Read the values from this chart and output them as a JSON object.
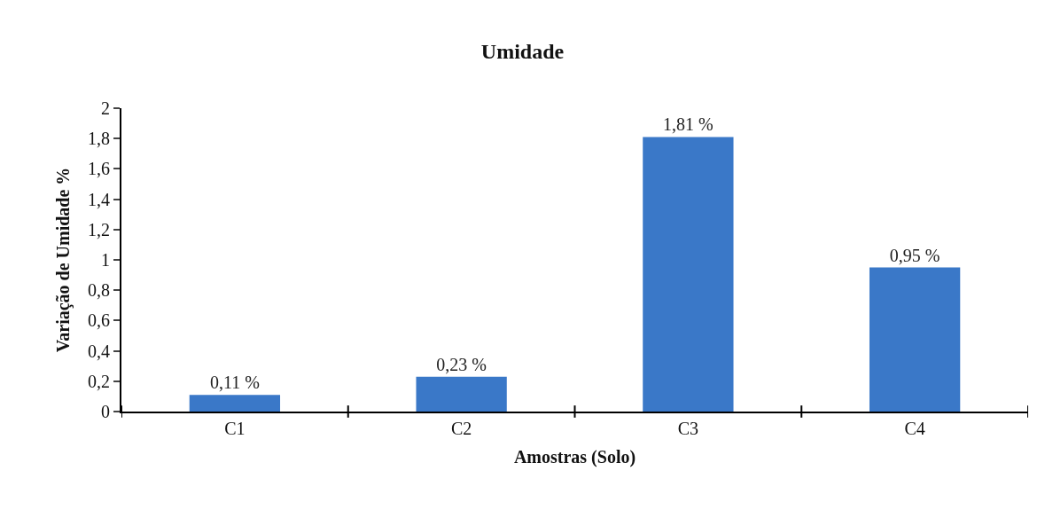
{
  "chart_data": {
    "type": "bar",
    "title": "Umidade",
    "xlabel": "Amostras (Solo)",
    "ylabel": "Variação de Umidade %",
    "categories": [
      "C1",
      "C2",
      "C3",
      "C4"
    ],
    "values": [
      0.11,
      0.23,
      1.81,
      0.95
    ],
    "value_labels": [
      "0,11 %",
      "0,23 %",
      "1,81 %",
      "0,95 %"
    ],
    "color": "#3a78c8",
    "ylim": [
      0,
      2
    ],
    "yticks": [
      0,
      {
        "value": 0.2,
        "label": "0,2"
      },
      {
        "value": 0.4,
        "label": "0,4"
      },
      {
        "value": 0.6,
        "label": "0,6"
      },
      {
        "value": 0.8,
        "label": "0,8"
      },
      1,
      {
        "value": 1.2,
        "label": "1,2"
      },
      {
        "value": 1.4,
        "label": "1,4"
      },
      {
        "value": 1.6,
        "label": "1,6"
      },
      {
        "value": 1.8,
        "label": "1,8"
      },
      2
    ]
  }
}
